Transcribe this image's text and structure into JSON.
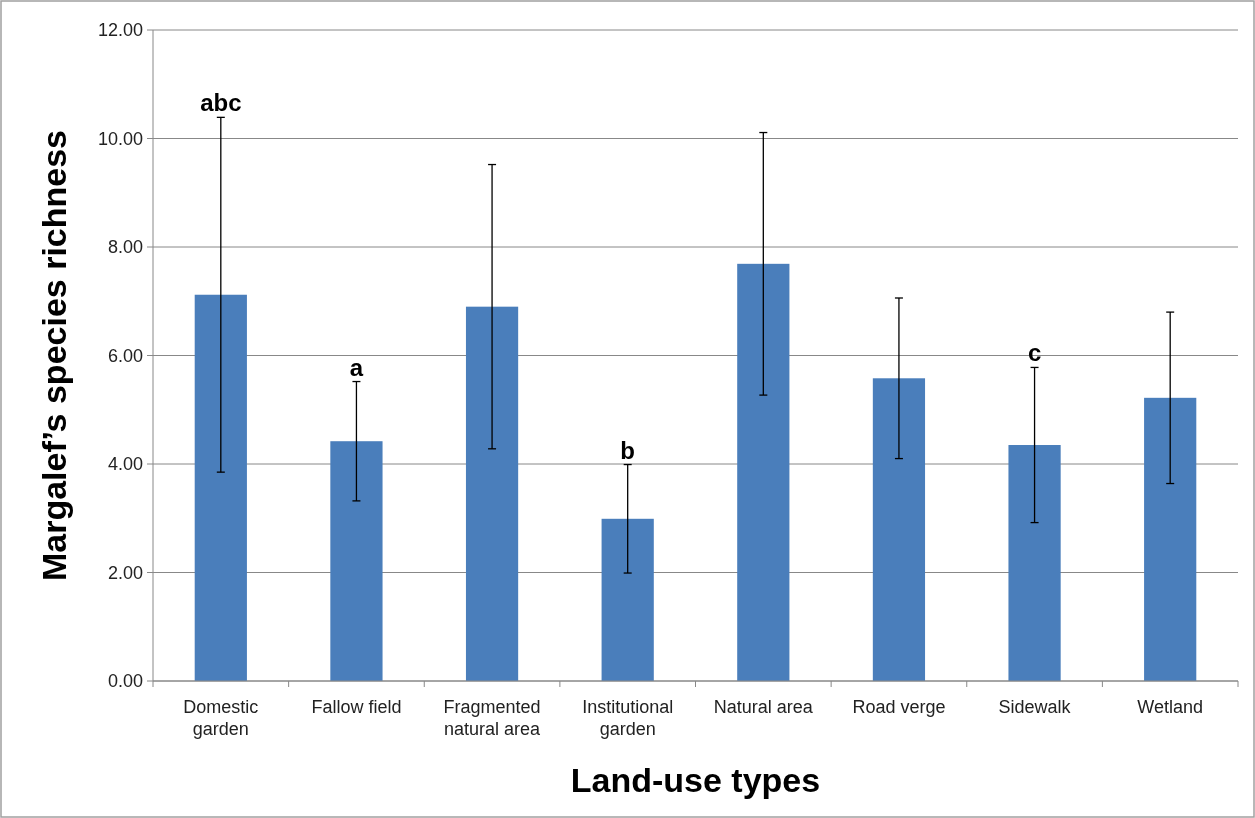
{
  "chart_data": {
    "type": "bar",
    "xlabel": "Land-use types",
    "ylabel": "Margalef’s species richness",
    "categories": [
      "Domestic garden",
      "Fallow field",
      "Fragmented natural area",
      "Institutional garden",
      "Natural area",
      "Road verge",
      "Sidewalk",
      "Wetland"
    ],
    "values": [
      7.12,
      4.42,
      6.9,
      2.99,
      7.69,
      5.58,
      4.35,
      5.22
    ],
    "errors": [
      3.27,
      1.1,
      2.62,
      1.0,
      2.42,
      1.48,
      1.43,
      1.58
    ],
    "color": "#4a7ebb",
    "ylim": [
      0,
      12
    ],
    "yticks": [
      {
        "value": 0,
        "label": "0.00"
      },
      {
        "value": 2,
        "label": "2.00"
      },
      {
        "value": 4,
        "label": "4.00"
      },
      {
        "value": 6,
        "label": "6.00"
      },
      {
        "value": 8,
        "label": "8.00"
      },
      {
        "value": 10,
        "label": "10.00"
      },
      {
        "value": 12,
        "label": "12.00"
      }
    ],
    "grid": "y",
    "annotations": [
      {
        "text": "abc",
        "x": "Domestic garden",
        "y": 10.39
      },
      {
        "text": "a",
        "x": "Fallow field",
        "y": 5.52
      },
      {
        "text": "b",
        "x": "Institutional garden",
        "y": 3.99
      },
      {
        "text": "c",
        "x": "Sidewalk",
        "y": 5.78
      }
    ]
  }
}
